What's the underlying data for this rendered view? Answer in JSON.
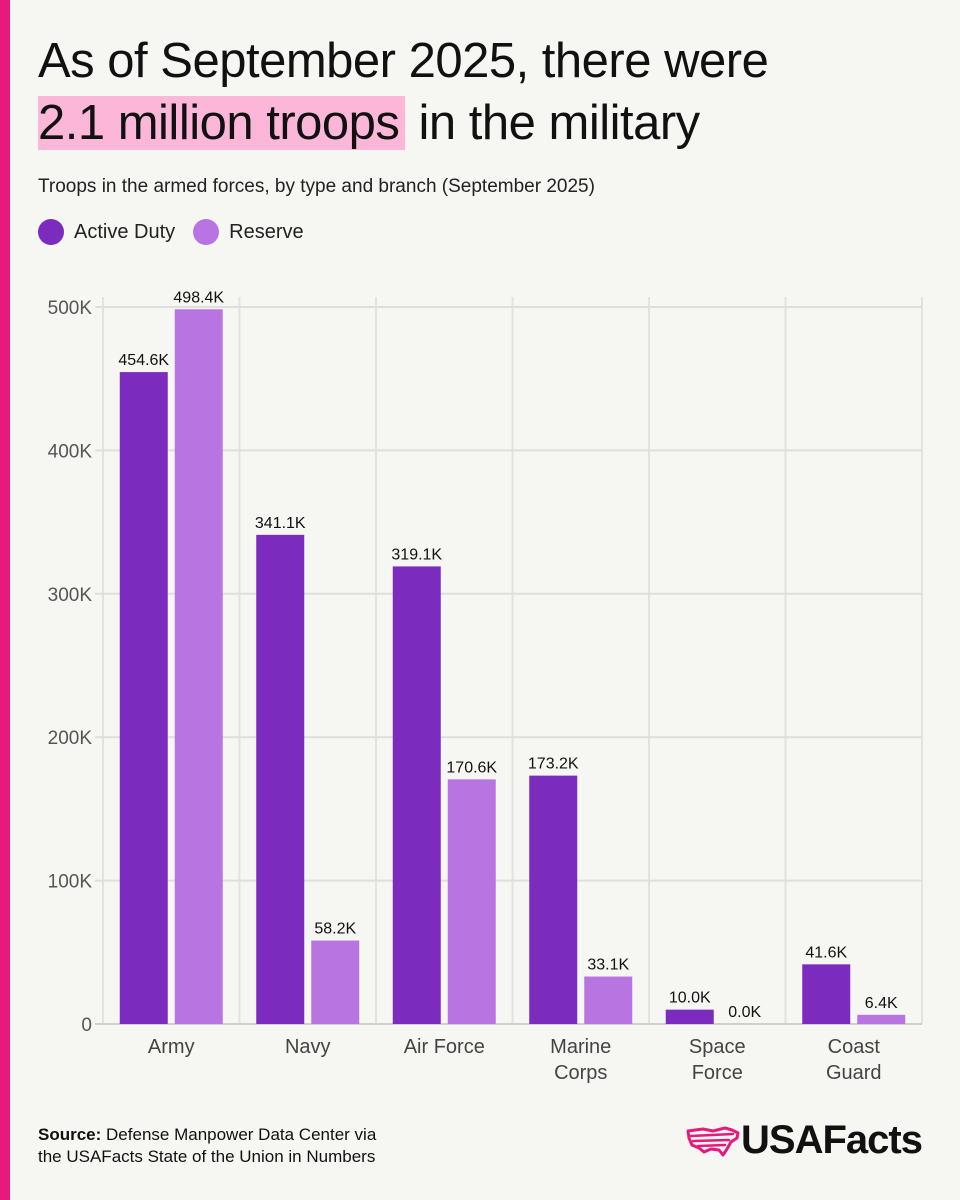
{
  "header": {
    "title_part1": "As of September 2025, there were",
    "title_highlight": "2.1 million troops",
    "title_part2": "in the military"
  },
  "chart_data": {
    "type": "bar",
    "title": "As of September 2025, there were 2.1 million troops in the military",
    "subtitle": "Troops in the armed forces, by type and branch (September 2025)",
    "categories": [
      "Army",
      "Navy",
      "Air Force",
      "Marine Corps",
      "Space Force",
      "Coast Guard"
    ],
    "category_lines": [
      [
        "Army"
      ],
      [
        "Navy"
      ],
      [
        "Air Force"
      ],
      [
        "Marine",
        "Corps"
      ],
      [
        "Space",
        "Force"
      ],
      [
        "Coast",
        "Guard"
      ]
    ],
    "series": [
      {
        "name": "Active Duty",
        "color": "#7b2cbf",
        "values": [
          454.6,
          341.1,
          319.1,
          173.2,
          10.0,
          41.6
        ],
        "labels": [
          "454.6K",
          "341.1K",
          "319.1K",
          "173.2K",
          "10.0K",
          "41.6K"
        ]
      },
      {
        "name": "Reserve",
        "color": "#b874e0",
        "values": [
          498.4,
          58.2,
          170.6,
          33.1,
          0.0,
          6.4
        ],
        "labels": [
          "498.4K",
          "58.2K",
          "170.6K",
          "33.1K",
          "0.0K",
          "6.4K"
        ]
      }
    ],
    "unit": "K",
    "ylim": [
      0,
      500
    ],
    "yticks": [
      0,
      100,
      200,
      300,
      400,
      500
    ],
    "ytick_labels": [
      "0",
      "100K",
      "200K",
      "300K",
      "400K",
      "500K"
    ],
    "grid": true,
    "legend_position": "top-left"
  },
  "footer": {
    "source_label": "Source:",
    "source_text_line1": "Defense Manpower Data Center via",
    "source_text_line2": "the USAFacts State of the Union in Numbers",
    "logo_text": "USAFacts"
  },
  "colors": {
    "accent": "#e8197c",
    "highlight": "#fbb6d8",
    "active_duty": "#7b2cbf",
    "reserve": "#b874e0",
    "background": "#f6f6f2",
    "gridline": "#dcdcd8"
  }
}
